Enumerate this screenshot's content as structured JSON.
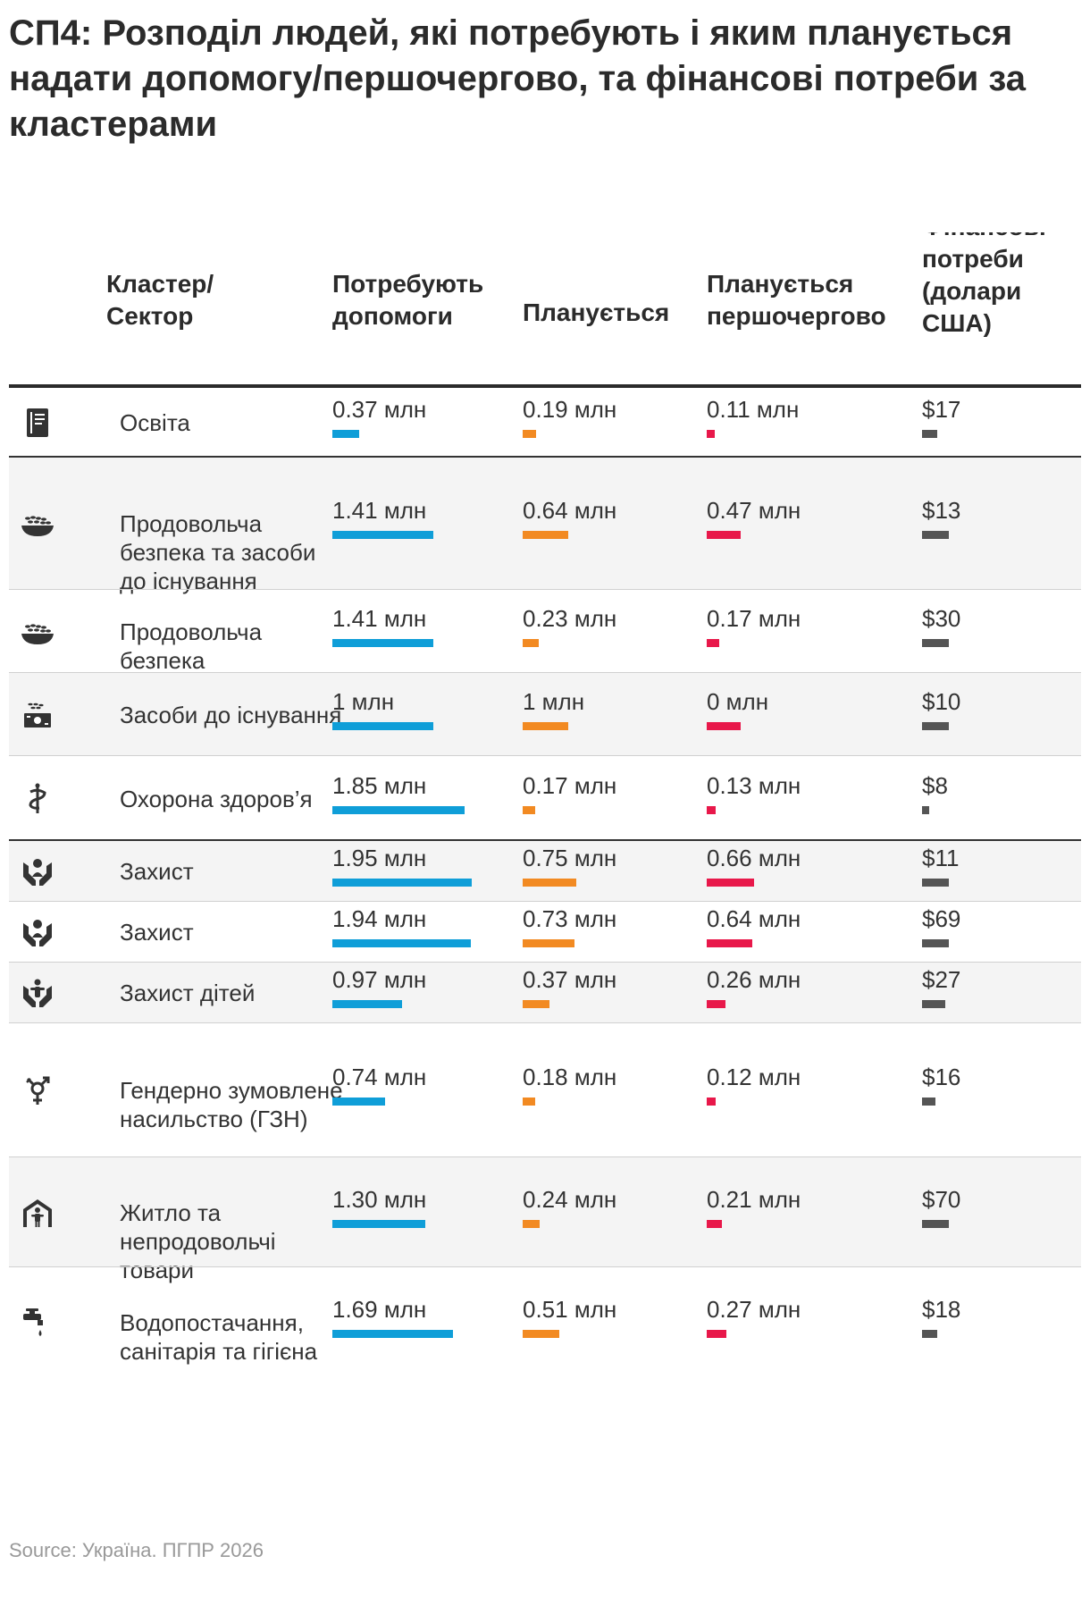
{
  "title": "СП4: Розподіл людей, які потребують і яким планується надати допомогу/першочергово, та фінансові потреби за кластерами",
  "source": "Source: Україна. ПГПР 2026",
  "headers": {
    "cluster": "Кластер/ Сектор",
    "need": "Потребують допомоги",
    "planned": "Планується",
    "priority": "Планується першочергово",
    "financial": "Фінансові потреби (долари США)"
  },
  "colors": {
    "need": "#0f9ed8",
    "planned": "#f28a22",
    "priority": "#e8184a",
    "financial": "#555555",
    "header_rule": "#2b2b2b"
  },
  "chart_data": {
    "type": "table",
    "title": "СП4: Розподіл людей, які потребують і яким планується надати допомогу/першочергово, та фінансові потреби за кластерами",
    "columns": [
      "Кластер/ Сектор",
      "Потребують допомоги",
      "Планується",
      "Планується першочергово",
      "Фінансові потреби (долари США)"
    ],
    "rows": [
      {
        "icon": "education-book-icon",
        "name": "Освіта",
        "need": "0.37 млн",
        "planned": "0.19 млн",
        "priority": "0.11 млн",
        "fin": "$17",
        "need_v": 0.37,
        "planned_v": 0.19,
        "priority_v": 0.11,
        "fin_frac": 0.55
      },
      {
        "icon": "food-bowl-icon",
        "name": "Продовольча безпека та засоби до існування",
        "need": "1.41 млн",
        "planned": "0.64 млн",
        "priority": "0.47 млн",
        "fin": "$13",
        "need_v": 1.41,
        "planned_v": 0.64,
        "priority_v": 0.47,
        "fin_frac": 1.0
      },
      {
        "icon": "food-bowl-icon",
        "name": "Продовольча безпека",
        "need": "1.41 млн",
        "planned": "0.23 млн",
        "priority": "0.17 млн",
        "fin": "$30",
        "need_v": 1.41,
        "planned_v": 0.23,
        "priority_v": 0.17,
        "fin_frac": 1.0
      },
      {
        "icon": "livelihoods-icon",
        "name": "Засоби до існування",
        "need": "1 млн",
        "planned": "1 млн",
        "priority": "0 млн",
        "fin": "$10",
        "need_v": 1.41,
        "planned_v": 0.64,
        "priority_v": 0.47,
        "fin_frac": 1.0
      },
      {
        "icon": "health-icon",
        "name": "Охорона здоров’я",
        "need": "1.85 млн",
        "planned": "0.17 млн",
        "priority": "0.13 млн",
        "fin": "$8",
        "need_v": 1.85,
        "planned_v": 0.17,
        "priority_v": 0.13,
        "fin_frac": 0.22
      },
      {
        "icon": "protection-icon",
        "name": "Захист",
        "need": "1.95 млн",
        "planned": "0.75 млн",
        "priority": "0.66 млн",
        "fin": "$11",
        "need_v": 1.95,
        "planned_v": 0.75,
        "priority_v": 0.66,
        "fin_frac": 1.0
      },
      {
        "icon": "protection-icon",
        "name": "Захист",
        "need": "1.94 млн",
        "planned": "0.73 млн",
        "priority": "0.64 млн",
        "fin": "$69",
        "need_v": 1.94,
        "planned_v": 0.73,
        "priority_v": 0.64,
        "fin_frac": 1.0
      },
      {
        "icon": "child-protection-icon",
        "name": "Захист дітей",
        "need": "0.97 млн",
        "planned": "0.37 млн",
        "priority": "0.26 млн",
        "fin": "$27",
        "need_v": 0.97,
        "planned_v": 0.37,
        "priority_v": 0.26,
        "fin_frac": 0.85
      },
      {
        "icon": "gender-icon",
        "name": "Гендерно зумовлене насильство (ГЗН)",
        "need": "0.74 млн",
        "planned": "0.18 млн",
        "priority": "0.12 млн",
        "fin": "$16",
        "need_v": 0.74,
        "planned_v": 0.18,
        "priority_v": 0.12,
        "fin_frac": 0.5
      },
      {
        "icon": "shelter-icon",
        "name": "Житло та непродовольчі товари",
        "need": "1.30 млн",
        "planned": "0.24 млн",
        "priority": "0.21 млн",
        "fin": "$70",
        "need_v": 1.3,
        "planned_v": 0.24,
        "priority_v": 0.21,
        "fin_frac": 1.0
      },
      {
        "icon": "water-tap-icon",
        "name": "Водопостачання, санітарія та гігієна",
        "need": "1.69 млн",
        "planned": "0.51 млн",
        "priority": "0.27 млн",
        "fin": "$18",
        "need_v": 1.69,
        "planned_v": 0.51,
        "priority_v": 0.27,
        "fin_frac": 0.55
      }
    ]
  }
}
